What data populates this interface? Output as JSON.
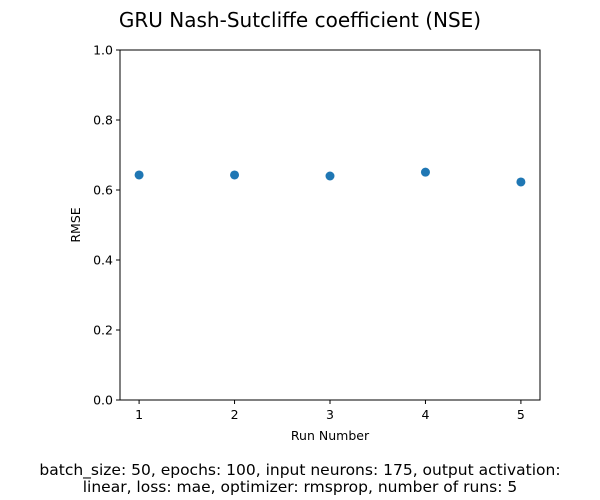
{
  "chart_data": {
    "type": "scatter",
    "title": "GRU Nash-Sutcliffe coefficient (NSE)",
    "xlabel": "Run Number",
    "ylabel": "RMSE",
    "x": [
      1,
      2,
      3,
      4,
      5
    ],
    "y": [
      0.643,
      0.643,
      0.64,
      0.651,
      0.623
    ],
    "xlim": [
      0.8,
      5.2
    ],
    "ylim": [
      0.0,
      1.0
    ],
    "xticks": [
      "1",
      "2",
      "3",
      "4",
      "5"
    ],
    "yticks": [
      "0.0",
      "0.2",
      "0.4",
      "0.6",
      "0.8",
      "1.0"
    ],
    "grid": false,
    "marker_color": "#1f77b4"
  },
  "caption": {
    "line1": "batch_size: 50, epochs: 100, input neurons: 175, output activation:",
    "line2": "linear, loss: mae, optimizer: rmsprop, number of runs: 5"
  }
}
